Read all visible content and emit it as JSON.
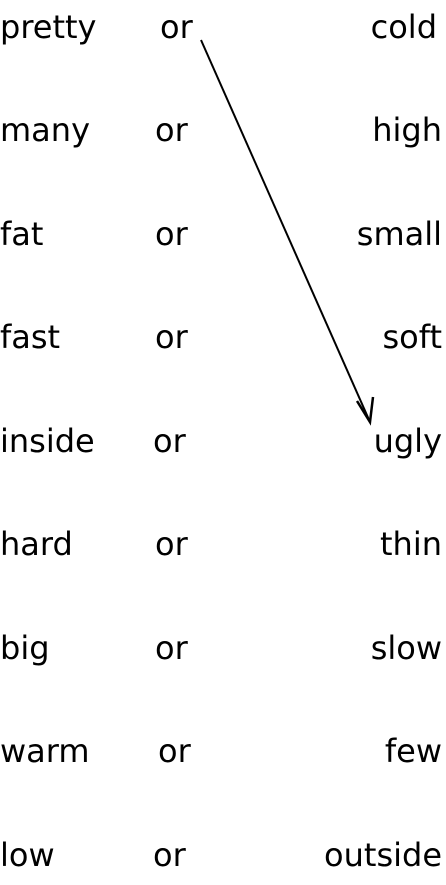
{
  "connector": "or",
  "rows": [
    {
      "left": "pretty",
      "right": "cold"
    },
    {
      "left": "many",
      "right": "high"
    },
    {
      "left": "fat",
      "right": "small"
    },
    {
      "left": "fast",
      "right": "soft"
    },
    {
      "left": "inside",
      "right": "ugly"
    },
    {
      "left": "hard",
      "right": "thin"
    },
    {
      "left": "big",
      "right": "slow"
    },
    {
      "left": "warm",
      "right": "few"
    },
    {
      "left": "low",
      "right": "outside"
    }
  ],
  "answer_arrow": {
    "from": "pretty",
    "to": "ugly",
    "color": "#000000"
  }
}
